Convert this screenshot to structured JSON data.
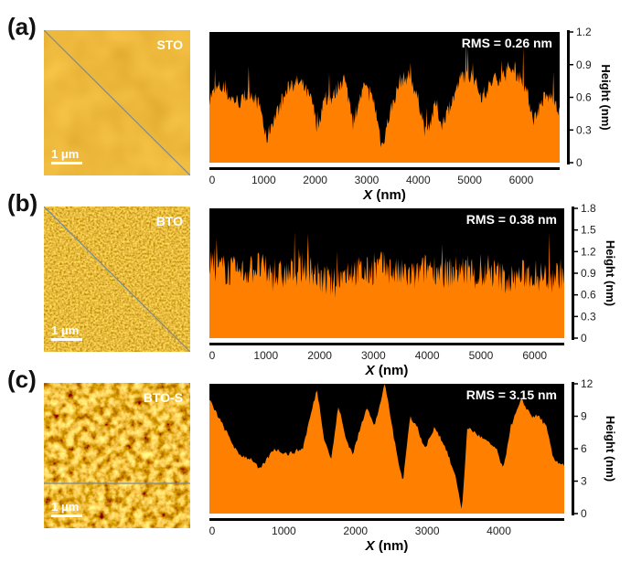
{
  "colors": {
    "fill": "#ff8000",
    "background": "#000000",
    "scan_line": "#7a8a99"
  },
  "panels": [
    {
      "label": "(a)",
      "sample": "STO",
      "scale_bar": "1 μm",
      "scan_line": "diagonal"
    },
    {
      "label": "(b)",
      "sample": "BTO",
      "scale_bar": "1 μm",
      "scan_line": "diagonal"
    },
    {
      "label": "(c)",
      "sample": "BTO-S",
      "scale_bar": "1 μm",
      "scan_line": "horizontal"
    }
  ],
  "chart_data": [
    {
      "type": "area",
      "annotation": "RMS = 0.26 nm",
      "xlabel": "X (nm)",
      "ylabel": "Height (nm)",
      "xlim": [
        0,
        6800
      ],
      "ylim": [
        0,
        1.2
      ],
      "xticks": [
        0,
        1000,
        2000,
        3000,
        4000,
        5000,
        6000
      ],
      "yticks": [
        "0",
        "0.3",
        "0.6",
        "0.9",
        "1.2"
      ],
      "x": [
        0,
        200,
        400,
        600,
        800,
        1000,
        1100,
        1200,
        1400,
        1600,
        1800,
        2000,
        2100,
        2200,
        2400,
        2600,
        2800,
        3000,
        3200,
        3350,
        3500,
        3700,
        3900,
        4100,
        4200,
        4400,
        4500,
        4700,
        4900,
        5100,
        5300,
        5500,
        5700,
        5900,
        6100,
        6300,
        6500,
        6700,
        6800
      ],
      "y": [
        0.6,
        0.7,
        0.6,
        0.55,
        0.65,
        0.5,
        0.2,
        0.35,
        0.55,
        0.75,
        0.72,
        0.55,
        0.3,
        0.55,
        0.6,
        0.8,
        0.4,
        0.7,
        0.55,
        0.15,
        0.45,
        0.75,
        0.8,
        0.5,
        0.25,
        0.55,
        0.35,
        0.55,
        0.8,
        0.8,
        0.6,
        0.75,
        0.8,
        0.85,
        0.75,
        0.4,
        0.6,
        0.6,
        0.45
      ]
    },
    {
      "type": "area",
      "annotation": "RMS = 0.38 nm",
      "xlabel": "X (nm)",
      "ylabel": "Height (nm)",
      "xlim": [
        0,
        6600
      ],
      "ylim": [
        0,
        1.8
      ],
      "xticks": [
        0,
        1000,
        2000,
        3000,
        4000,
        5000,
        6000
      ],
      "yticks": [
        "0",
        "0.3",
        "0.6",
        "0.9",
        "1.2",
        "1.5",
        "1.8"
      ],
      "x": [
        0,
        300,
        600,
        900,
        1200,
        1500,
        1800,
        2100,
        2300,
        2600,
        2900,
        3200,
        3500,
        3800,
        4100,
        4400,
        4700,
        5000,
        5300,
        5600,
        5900,
        6200,
        6600
      ],
      "y": [
        1.0,
        0.95,
        0.9,
        1.0,
        0.85,
        0.9,
        1.0,
        0.8,
        0.75,
        0.95,
        0.9,
        1.0,
        0.9,
        0.85,
        1.0,
        0.9,
        0.95,
        0.85,
        0.9,
        0.8,
        0.9,
        0.85,
        0.9
      ]
    },
    {
      "type": "area",
      "annotation": "RMS = 3.15 nm",
      "xlabel": "X (nm)",
      "ylabel": "Height (nm)",
      "xlim": [
        0,
        4950
      ],
      "ylim": [
        0,
        12
      ],
      "xticks": [
        0,
        1000,
        2000,
        3000,
        4000
      ],
      "yticks": [
        "0",
        "3",
        "6",
        "9",
        "12"
      ],
      "x": [
        0,
        200,
        400,
        600,
        700,
        900,
        1100,
        1300,
        1500,
        1600,
        1700,
        1800,
        1900,
        2000,
        2200,
        2300,
        2450,
        2600,
        2700,
        2800,
        2900,
        3000,
        3150,
        3300,
        3450,
        3520,
        3600,
        3800,
        4000,
        4100,
        4200,
        4350,
        4500,
        4600,
        4700,
        4800,
        4950
      ],
      "y": [
        10.5,
        8,
        5.5,
        5,
        4,
        6,
        5.5,
        6,
        11.5,
        7,
        5,
        10,
        7,
        5.5,
        10,
        8,
        12,
        6,
        3,
        9,
        8,
        6,
        8,
        6,
        3,
        0.2,
        8,
        7,
        6,
        4,
        8,
        10.5,
        9,
        9,
        8,
        5,
        4.5
      ]
    }
  ]
}
